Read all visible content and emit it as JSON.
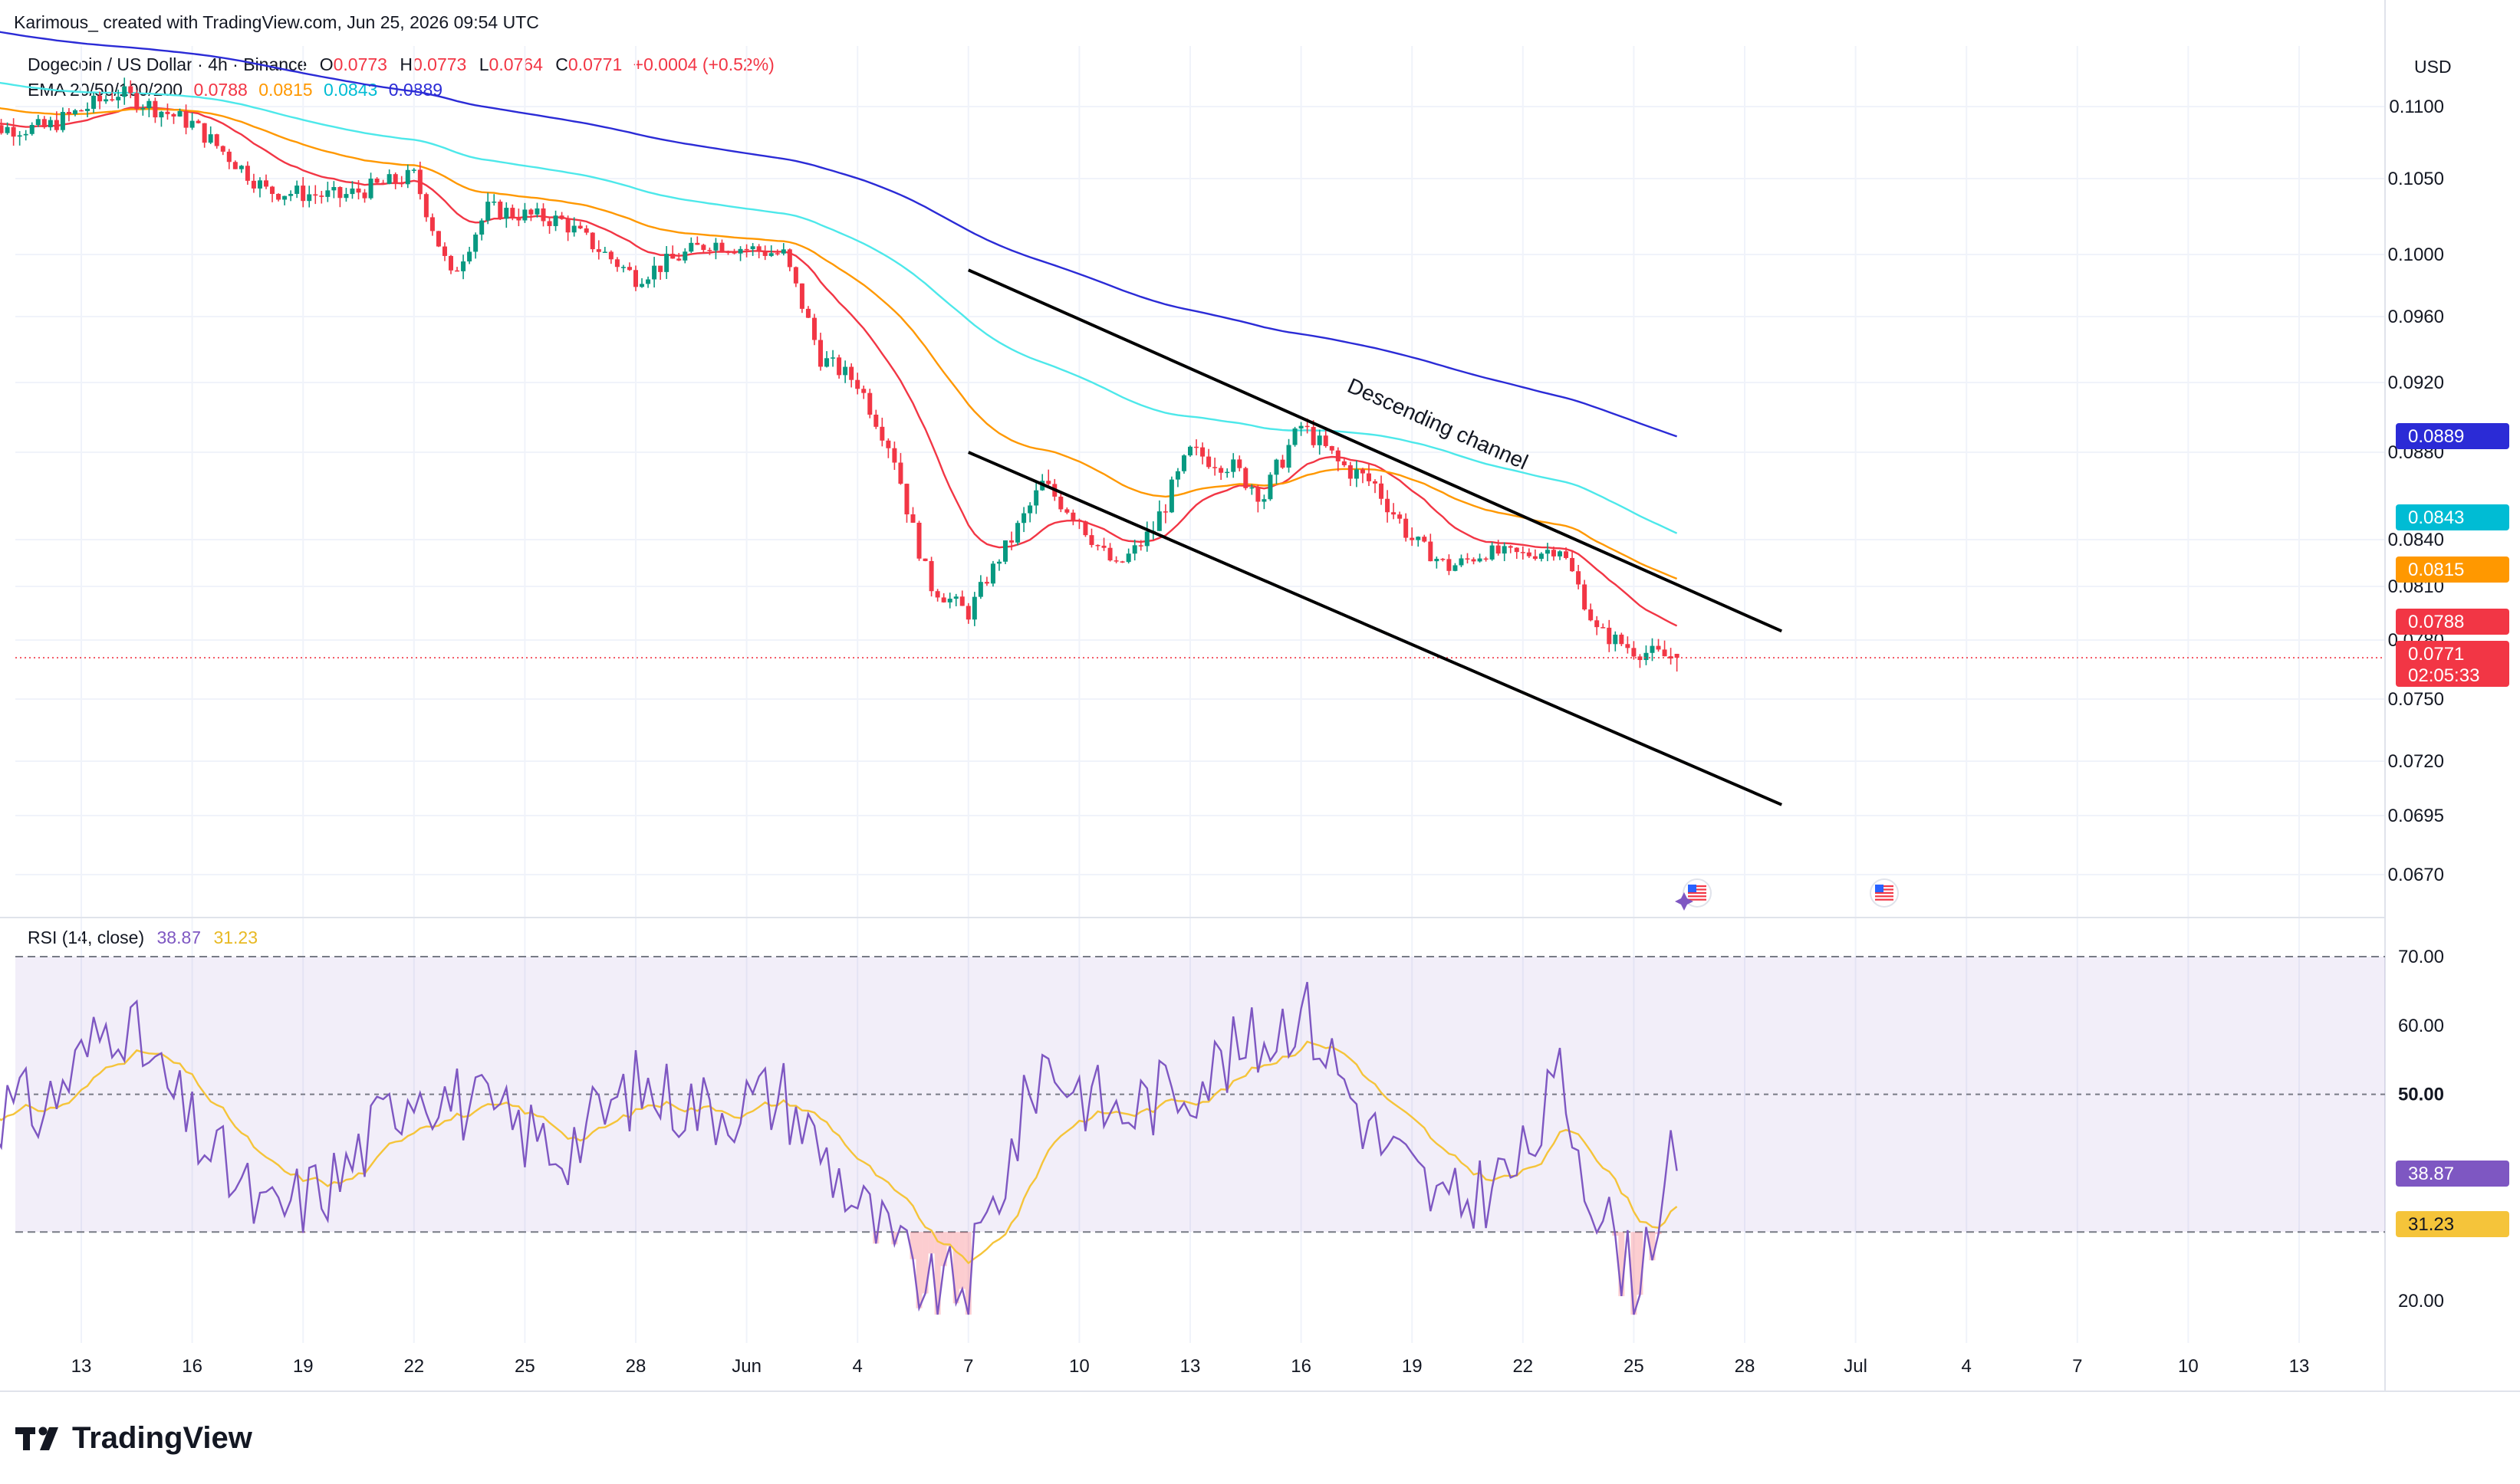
{
  "header": {
    "attribution": "Karimous_ created with TradingView.com, Jun 25, 2026 09:54 UTC",
    "symbol": "Dogecoin / US Dollar · 4h · Binance",
    "ohlc": {
      "O": "0.0773",
      "H": "0.0773",
      "L": "0.0764",
      "C": "0.0771",
      "change": "+0.0004 (+0.52%)"
    },
    "ema_label": "EMA 20/50/100/200",
    "ema_values": [
      "0.0788",
      "0.0815",
      "0.0843",
      "0.0889"
    ],
    "currency": "USD"
  },
  "colors": {
    "up": "#089981",
    "down": "#f23645",
    "ema20": "#f23645",
    "ema50": "#ff9800",
    "ema100": "#4de8ea",
    "ema200": "#2b2bd6",
    "rsi": "#7e57c2",
    "rsi_ma": "#f5c43a",
    "rsi_band": "#7e57c2"
  },
  "price_axis": {
    "ticks": [
      "0.1100",
      "0.1050",
      "0.1000",
      "0.0960",
      "0.0920",
      "0.0880",
      "0.0840",
      "0.0810",
      "0.0780",
      "0.0750",
      "0.0720",
      "0.0695",
      "0.0670"
    ],
    "badges": [
      {
        "value": "0.0889",
        "color": "#2b2bd6"
      },
      {
        "value": "0.0843",
        "color": "#00bcd4"
      },
      {
        "value": "0.0815",
        "color": "#ff9800"
      },
      {
        "value": "0.0788",
        "color": "#f23645"
      },
      {
        "value": "0.0771",
        "countdown": "02:05:33",
        "color": "#f23645"
      }
    ]
  },
  "rsi_panel": {
    "label": "RSI (14, close)",
    "value": "38.87",
    "ma_value": "31.23",
    "ticks": [
      "70.00",
      "60.00",
      "50.00",
      "20.00"
    ],
    "upper_band": 70,
    "middle": 50,
    "lower_band": 30
  },
  "time_axis": [
    "13",
    "16",
    "19",
    "22",
    "25",
    "28",
    "Jun",
    "4",
    "7",
    "10",
    "13",
    "16",
    "19",
    "22",
    "25",
    "28",
    "Jul",
    "4",
    "7",
    "10",
    "13"
  ],
  "annotation": "Descending channel",
  "logo": "TradingView",
  "chart_data": {
    "type": "candlestick",
    "interval": "4h",
    "y_unit": "USD",
    "x_range": [
      "May 11, 2026",
      "Jul 14, 2026"
    ],
    "price_ylim": [
      0.066,
      0.112
    ],
    "last_price": 0.0771,
    "ema": {
      "20": 0.0788,
      "50": 0.0815,
      "100": 0.0843,
      "200": 0.0889
    },
    "approx_closes_by_date": [
      [
        "May 12",
        0.1085
      ],
      [
        "May 14",
        0.111
      ],
      [
        "May 16",
        0.1088
      ],
      [
        "May 18",
        0.1042
      ],
      [
        "May 20",
        0.1038
      ],
      [
        "May 22",
        0.1052
      ],
      [
        "May 23",
        0.0985
      ],
      [
        "May 24",
        0.103
      ],
      [
        "May 26",
        0.1022
      ],
      [
        "May 28",
        0.0985
      ],
      [
        "May 30",
        0.1008
      ],
      [
        "Jun 1",
        0.1
      ],
      [
        "Jun 2",
        0.0935
      ],
      [
        "Jun 3",
        0.092
      ],
      [
        "Jun 4",
        0.0878
      ],
      [
        "Jun 5",
        0.081
      ],
      [
        "Jun 6",
        0.0795
      ],
      [
        "Jun 7",
        0.0835
      ],
      [
        "Jun 8",
        0.0865
      ],
      [
        "Jun 9",
        0.085
      ],
      [
        "Jun 10",
        0.0822
      ],
      [
        "Jun 11",
        0.0845
      ],
      [
        "Jun 12",
        0.088
      ],
      [
        "Jun 13",
        0.0875
      ],
      [
        "Jun 14",
        0.086
      ],
      [
        "Jun 15",
        0.0895
      ],
      [
        "Jun 16",
        0.0875
      ],
      [
        "Jun 17",
        0.0865
      ],
      [
        "Jun 18",
        0.084
      ],
      [
        "Jun 19",
        0.0822
      ],
      [
        "Jun 20",
        0.0832
      ],
      [
        "Jun 21",
        0.083
      ],
      [
        "Jun 22",
        0.0835
      ],
      [
        "Jun 23",
        0.0785
      ],
      [
        "Jun 24",
        0.0775
      ],
      [
        "Jun 25",
        0.0771
      ]
    ],
    "channel": {
      "upper": [
        [
          "Jun 6",
          0.099
        ],
        [
          "Jun 28",
          0.0785
        ]
      ],
      "lower": [
        [
          "Jun 6",
          0.088
        ],
        [
          "Jun 28",
          0.07
        ]
      ]
    },
    "rsi_series_by_date": [
      [
        "May 12",
        48
      ],
      [
        "May 14",
        62
      ],
      [
        "May 16",
        45
      ],
      [
        "May 18",
        32
      ],
      [
        "May 20",
        38
      ],
      [
        "May 22",
        52
      ],
      [
        "May 24",
        47
      ],
      [
        "May 26",
        42
      ],
      [
        "May 28",
        51
      ],
      [
        "May 30",
        48
      ],
      [
        "Jun 1",
        50
      ],
      [
        "Jun 3",
        34
      ],
      [
        "Jun 5",
        21
      ],
      [
        "Jun 6",
        23
      ],
      [
        "Jun 8",
        55
      ],
      [
        "Jun 10",
        47
      ],
      [
        "Jun 12",
        52
      ],
      [
        "Jun 14",
        58
      ],
      [
        "Jun 15",
        63
      ],
      [
        "Jun 17",
        44
      ],
      [
        "Jun 19",
        33
      ],
      [
        "Jun 21",
        40
      ],
      [
        "Jun 22",
        52
      ],
      [
        "Jun 23",
        34
      ],
      [
        "Jun 24",
        23
      ],
      [
        "Jun 25",
        38.87
      ]
    ]
  }
}
